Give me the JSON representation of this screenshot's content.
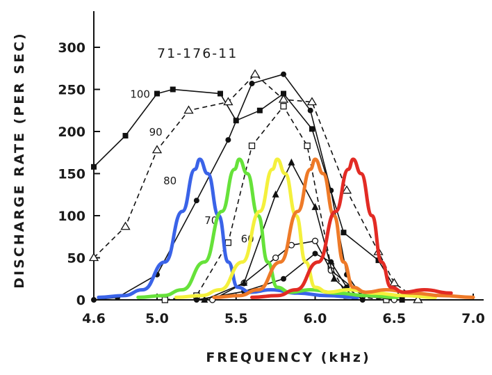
{
  "chart_data": {
    "type": "line",
    "title": "71-176-11",
    "xlabel": "FREQUENCY (kHz)",
    "ylabel": "DISCHARGE RATE (PER SEC)",
    "xlim": [
      4.6,
      7.0
    ],
    "ylim": [
      0,
      300
    ],
    "xticks": [
      "4.6",
      "5.0",
      "5.5",
      "6.0",
      "6.5",
      "7.0"
    ],
    "xtick_values": [
      4.6,
      5.0,
      5.5,
      6.0,
      6.5,
      7.0
    ],
    "yticks": [
      "0",
      "50",
      "100",
      "150",
      "200",
      "250",
      "300"
    ],
    "ytick_values": [
      0,
      50,
      100,
      150,
      200,
      250,
      300
    ],
    "series": [
      {
        "name": "100",
        "color": "#111111",
        "style": "solid",
        "marker": "square",
        "points": [
          [
            4.6,
            158
          ],
          [
            4.8,
            195
          ],
          [
            5.0,
            245
          ],
          [
            5.1,
            250
          ],
          [
            5.4,
            245
          ],
          [
            5.5,
            213
          ],
          [
            5.65,
            225
          ],
          [
            5.8,
            245
          ],
          [
            5.98,
            203
          ],
          [
            6.18,
            80
          ],
          [
            6.4,
            47
          ],
          [
            6.55,
            0
          ]
        ]
      },
      {
        "name": "90",
        "color": "#111111",
        "style": "dashed",
        "marker": "open-triangle",
        "points": [
          [
            4.6,
            50
          ],
          [
            4.8,
            87
          ],
          [
            5.0,
            178
          ],
          [
            5.2,
            225
          ],
          [
            5.45,
            235
          ],
          [
            5.62,
            268
          ],
          [
            5.8,
            238
          ],
          [
            5.98,
            235
          ],
          [
            6.2,
            130
          ],
          [
            6.4,
            57
          ],
          [
            6.5,
            20
          ],
          [
            6.65,
            0
          ]
        ]
      },
      {
        "name": "80",
        "color": "#111111",
        "style": "solid",
        "marker": "dot",
        "points": [
          [
            4.6,
            0
          ],
          [
            4.75,
            3
          ],
          [
            5.0,
            30
          ],
          [
            5.25,
            118
          ],
          [
            5.45,
            190
          ],
          [
            5.6,
            257
          ],
          [
            5.8,
            268
          ],
          [
            5.97,
            225
          ],
          [
            6.1,
            130
          ],
          [
            6.2,
            30
          ],
          [
            6.3,
            3
          ]
        ]
      },
      {
        "name": "70",
        "color": "#111111",
        "style": "dashed",
        "marker": "open-square",
        "points": [
          [
            5.05,
            0
          ],
          [
            5.25,
            5
          ],
          [
            5.45,
            68
          ],
          [
            5.6,
            183
          ],
          [
            5.8,
            230
          ],
          [
            5.95,
            183
          ],
          [
            6.1,
            40
          ],
          [
            6.2,
            5
          ],
          [
            6.45,
            0
          ]
        ]
      },
      {
        "name": "60",
        "color": "#111111",
        "style": "solid",
        "marker": "open-circle",
        "points": [
          [
            5.35,
            0
          ],
          [
            5.55,
            20
          ],
          [
            5.75,
            50
          ],
          [
            5.85,
            65
          ],
          [
            6.0,
            70
          ],
          [
            6.1,
            35
          ],
          [
            6.3,
            5
          ],
          [
            6.5,
            0
          ]
        ]
      },
      {
        "name": "",
        "color": "#111111",
        "style": "solid",
        "marker": "triangle",
        "points": [
          [
            5.3,
            0
          ],
          [
            5.55,
            20
          ],
          [
            5.75,
            125
          ],
          [
            5.85,
            163
          ],
          [
            6.0,
            110
          ],
          [
            6.12,
            25
          ],
          [
            6.25,
            3
          ]
        ]
      },
      {
        "name": "",
        "color": "#111111",
        "style": "solid",
        "marker": "dot",
        "points": [
          [
            5.25,
            0
          ],
          [
            5.55,
            10
          ],
          [
            5.8,
            25
          ],
          [
            6.0,
            55
          ],
          [
            6.1,
            45
          ],
          [
            6.2,
            15
          ],
          [
            6.3,
            0
          ]
        ]
      }
    ],
    "overlays": [
      {
        "color": "#3a63e8",
        "peak_x": 5.27,
        "peak_y": 167
      },
      {
        "color": "#66e23a",
        "peak_x": 5.52,
        "peak_y": 167
      },
      {
        "color": "#f4f03c",
        "peak_x": 5.76,
        "peak_y": 167
      },
      {
        "color": "#ee7a28",
        "peak_x": 6.0,
        "peak_y": 167
      },
      {
        "color": "#e22b24",
        "peak_x": 6.24,
        "peak_y": 167
      }
    ],
    "annotations": [
      "100",
      "90",
      "80",
      "70",
      "60"
    ],
    "grid": false,
    "legend": "none"
  }
}
